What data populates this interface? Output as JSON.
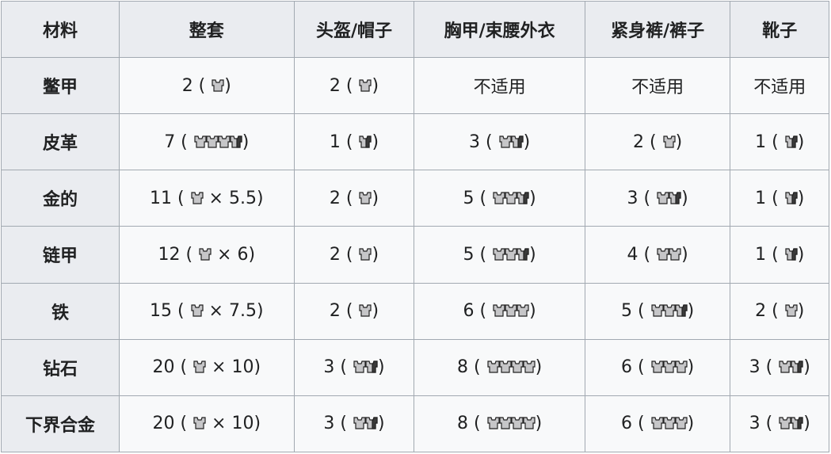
{
  "table": {
    "headers": [
      "材料",
      "整套",
      "头盔/帽子",
      "胸甲/束腰外衣",
      "紧身裤/裤子",
      "靴子"
    ],
    "rows": [
      {
        "material": "鳖甲",
        "cells": [
          {
            "value": "2",
            "full": 1,
            "half": 0,
            "suffix": ""
          },
          {
            "value": "2",
            "full": 1,
            "half": 0,
            "suffix": ""
          },
          {
            "text": "不适用"
          },
          {
            "text": "不适用"
          },
          {
            "text": "不适用"
          }
        ]
      },
      {
        "material": "皮革",
        "cells": [
          {
            "value": "7",
            "full": 3,
            "half": 1,
            "suffix": ""
          },
          {
            "value": "1",
            "full": 0,
            "half": 1,
            "suffix": ""
          },
          {
            "value": "3",
            "full": 1,
            "half": 1,
            "suffix": ""
          },
          {
            "value": "2",
            "full": 1,
            "half": 0,
            "suffix": ""
          },
          {
            "value": "1",
            "full": 0,
            "half": 1,
            "suffix": ""
          }
        ]
      },
      {
        "material": "金的",
        "cells": [
          {
            "value": "11",
            "full": 1,
            "half": 0,
            "suffix": "× 5.5"
          },
          {
            "value": "2",
            "full": 1,
            "half": 0,
            "suffix": ""
          },
          {
            "value": "5",
            "full": 2,
            "half": 1,
            "suffix": ""
          },
          {
            "value": "3",
            "full": 1,
            "half": 1,
            "suffix": ""
          },
          {
            "value": "1",
            "full": 0,
            "half": 1,
            "suffix": ""
          }
        ]
      },
      {
        "material": "链甲",
        "cells": [
          {
            "value": "12",
            "full": 1,
            "half": 0,
            "suffix": "× 6"
          },
          {
            "value": "2",
            "full": 1,
            "half": 0,
            "suffix": ""
          },
          {
            "value": "5",
            "full": 2,
            "half": 1,
            "suffix": ""
          },
          {
            "value": "4",
            "full": 2,
            "half": 0,
            "suffix": ""
          },
          {
            "value": "1",
            "full": 0,
            "half": 1,
            "suffix": ""
          }
        ]
      },
      {
        "material": "铁",
        "cells": [
          {
            "value": "15",
            "full": 1,
            "half": 0,
            "suffix": "× 7.5"
          },
          {
            "value": "2",
            "full": 1,
            "half": 0,
            "suffix": ""
          },
          {
            "value": "6",
            "full": 3,
            "half": 0,
            "suffix": ""
          },
          {
            "value": "5",
            "full": 2,
            "half": 1,
            "suffix": ""
          },
          {
            "value": "2",
            "full": 1,
            "half": 0,
            "suffix": ""
          }
        ]
      },
      {
        "material": "钻石",
        "cells": [
          {
            "value": "20",
            "full": 1,
            "half": 0,
            "suffix": "× 10"
          },
          {
            "value": "3",
            "full": 1,
            "half": 1,
            "suffix": ""
          },
          {
            "value": "8",
            "full": 4,
            "half": 0,
            "suffix": ""
          },
          {
            "value": "6",
            "full": 3,
            "half": 0,
            "suffix": ""
          },
          {
            "value": "3",
            "full": 1,
            "half": 1,
            "suffix": ""
          }
        ]
      },
      {
        "material": "下界合金",
        "cells": [
          {
            "value": "20",
            "full": 1,
            "half": 0,
            "suffix": "× 10"
          },
          {
            "value": "3",
            "full": 1,
            "half": 1,
            "suffix": ""
          },
          {
            "value": "8",
            "full": 4,
            "half": 0,
            "suffix": ""
          },
          {
            "value": "6",
            "full": 3,
            "half": 0,
            "suffix": ""
          },
          {
            "value": "3",
            "full": 1,
            "half": 1,
            "suffix": ""
          }
        ]
      }
    ],
    "icon": "armor-chestplate-icon",
    "colors": {
      "header_bg": "#eaecf0",
      "cell_bg": "#f8f9fa",
      "border": "#a2a9b1",
      "armor_light": "#c6c6c8",
      "armor_dark": "#3a3a3a"
    }
  }
}
